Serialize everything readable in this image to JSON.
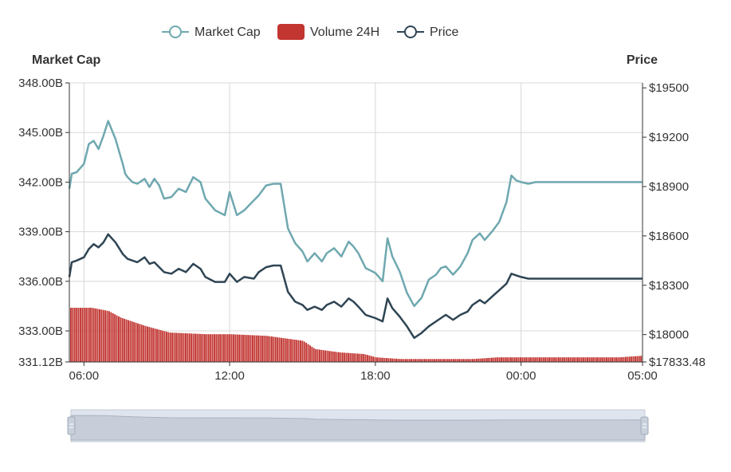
{
  "chart_data": {
    "type": "line",
    "legend": {
      "placement": "top-center",
      "items": [
        {
          "name": "Market Cap",
          "color": "#6fa8b0",
          "kind": "line"
        },
        {
          "name": "Volume 24H",
          "color": "#c23531",
          "kind": "bar"
        },
        {
          "name": "Price",
          "color": "#2f4554",
          "kind": "line"
        }
      ]
    },
    "y_left": {
      "title": "Market Cap",
      "ticks": [
        "348.00B",
        "345.00B",
        "342.00B",
        "339.00B",
        "336.00B",
        "333.00B",
        "331.12B"
      ],
      "range": [
        331.12,
        348.0
      ],
      "unit": "B"
    },
    "y_right": {
      "title": "Price",
      "ticks": [
        "$19500",
        "$19200",
        "$18900",
        "$18600",
        "$18300",
        "$18000",
        "$17833.48"
      ],
      "range": [
        17833.48,
        19530
      ]
    },
    "x": {
      "ticks": [
        "06:00",
        "12:00",
        "18:00",
        "00:00",
        "05:00"
      ],
      "tick_hours": [
        0,
        6,
        12,
        18,
        23
      ],
      "range_hours": [
        -0.6,
        23
      ]
    },
    "grid": true,
    "data_zoom": {
      "shown": true,
      "start": 0,
      "end": 100
    },
    "series": [
      {
        "name": "Market Cap",
        "color": "#6fa8b0",
        "x": [
          -0.6,
          -0.5,
          -0.3,
          0.0,
          0.2,
          0.4,
          0.6,
          0.8,
          1.0,
          1.3,
          1.6,
          1.7,
          1.8,
          2.0,
          2.2,
          2.5,
          2.7,
          2.9,
          3.1,
          3.3,
          3.6,
          3.9,
          4.2,
          4.5,
          4.8,
          5.0,
          5.4,
          5.8,
          6.0,
          6.3,
          6.6,
          7.0,
          7.2,
          7.5,
          7.8,
          8.1,
          8.4,
          8.7,
          9.0,
          9.2,
          9.5,
          9.8,
          10.0,
          10.3,
          10.6,
          10.9,
          11.1,
          11.3,
          11.6,
          12.0,
          12.3,
          12.5,
          12.7,
          13.0,
          13.3,
          13.6,
          13.9,
          14.2,
          14.5,
          14.7,
          14.9,
          15.2,
          15.5,
          15.8,
          16.0,
          16.3,
          16.5,
          16.8,
          17.1,
          17.4,
          17.6,
          17.8,
          18.0,
          18.3,
          18.6,
          18.9,
          19.2,
          19.5,
          19.8,
          20.1,
          20.4,
          20.7,
          21.0,
          21.3,
          21.6,
          21.9,
          22.1,
          22.4,
          22.6,
          22.8,
          23.0
        ],
        "values": [
          341.6,
          342.5,
          342.6,
          343.1,
          344.3,
          344.5,
          344.0,
          344.8,
          345.7,
          344.6,
          343.1,
          342.5,
          342.3,
          342.0,
          341.9,
          342.2,
          341.7,
          342.2,
          341.8,
          341.0,
          341.1,
          341.6,
          341.4,
          342.3,
          342.0,
          341.0,
          340.3,
          340.0,
          341.4,
          340.0,
          340.3,
          340.9,
          341.2,
          341.8,
          341.9,
          341.9,
          339.2,
          338.3,
          337.8,
          337.2,
          337.7,
          337.2,
          337.7,
          338.0,
          337.5,
          338.4,
          338.1,
          337.7,
          336.8,
          336.5,
          336.0,
          338.6,
          337.5,
          336.6,
          335.3,
          334.5,
          335.0,
          336.1,
          336.4,
          336.8,
          336.9,
          336.4,
          336.9,
          337.7,
          338.5,
          338.9,
          338.5,
          339.0,
          339.6,
          340.8,
          342.4,
          342.1,
          342.0,
          341.9,
          342.0,
          342.0,
          342.0,
          342.0,
          342.0,
          342.0,
          342.0,
          342.0,
          342.0,
          342.0,
          342.0,
          342.0,
          342.0,
          342.0,
          342.0,
          342.0,
          342.0
        ]
      },
      {
        "name": "Price",
        "color": "#2f4554",
        "x": [
          -0.6,
          -0.5,
          -0.3,
          0.0,
          0.2,
          0.4,
          0.6,
          0.8,
          1.0,
          1.3,
          1.6,
          1.8,
          2.0,
          2.2,
          2.5,
          2.7,
          2.9,
          3.1,
          3.3,
          3.6,
          3.9,
          4.2,
          4.5,
          4.8,
          5.0,
          5.4,
          5.8,
          6.0,
          6.3,
          6.6,
          7.0,
          7.2,
          7.5,
          7.8,
          8.1,
          8.4,
          8.7,
          9.0,
          9.2,
          9.5,
          9.8,
          10.0,
          10.3,
          10.6,
          10.9,
          11.1,
          11.3,
          11.6,
          12.0,
          12.3,
          12.5,
          12.7,
          13.0,
          13.3,
          13.6,
          13.9,
          14.2,
          14.5,
          14.7,
          14.9,
          15.2,
          15.5,
          15.8,
          16.0,
          16.3,
          16.5,
          16.8,
          17.1,
          17.4,
          17.6,
          17.8,
          18.0,
          18.3,
          18.6,
          18.9,
          19.2,
          19.5,
          19.8,
          20.1,
          20.4,
          20.7,
          21.0,
          21.3,
          21.6,
          21.9,
          22.1,
          22.4,
          22.6,
          22.8,
          23.0
        ],
        "values": [
          18350,
          18440,
          18450,
          18470,
          18520,
          18550,
          18530,
          18560,
          18610,
          18560,
          18490,
          18460,
          18450,
          18440,
          18470,
          18430,
          18440,
          18410,
          18380,
          18370,
          18400,
          18380,
          18430,
          18400,
          18350,
          18320,
          18320,
          18370,
          18320,
          18350,
          18340,
          18380,
          18410,
          18420,
          18420,
          18260,
          18200,
          18180,
          18150,
          18170,
          18150,
          18180,
          18200,
          18170,
          18220,
          18200,
          18170,
          18120,
          18100,
          18080,
          18220,
          18160,
          18110,
          18050,
          17980,
          18010,
          18050,
          18080,
          18100,
          18120,
          18090,
          18120,
          18140,
          18180,
          18210,
          18190,
          18230,
          18270,
          18310,
          18370,
          18360,
          18350,
          18340,
          18340,
          18340,
          18340,
          18340,
          18340,
          18340,
          18340,
          18340,
          18340,
          18340,
          18340,
          18340,
          18340,
          18340,
          18340,
          18340,
          18340
        ]
      },
      {
        "name": "Volume 24H",
        "color": "#c23531",
        "x": [
          -0.6,
          0.3,
          1.0,
          1.5,
          2.5,
          3.5,
          5.0,
          6.0,
          7.5,
          8.5,
          9.0,
          9.5,
          10.5,
          11.5,
          12.0,
          13.0,
          14.0,
          15.0,
          16.0,
          17.0,
          17.5,
          18.0,
          19.0,
          20.0,
          21.0,
          22.0,
          23.0
        ],
        "values": [
          334.4,
          334.4,
          334.2,
          333.8,
          333.3,
          332.9,
          332.8,
          332.8,
          332.7,
          332.5,
          332.4,
          331.9,
          331.7,
          331.6,
          331.4,
          331.3,
          331.3,
          331.3,
          331.3,
          331.4,
          331.4,
          331.4,
          331.4,
          331.4,
          331.4,
          331.4,
          331.5
        ],
        "note_axis": "plotted against the left axis baseline"
      }
    ]
  }
}
